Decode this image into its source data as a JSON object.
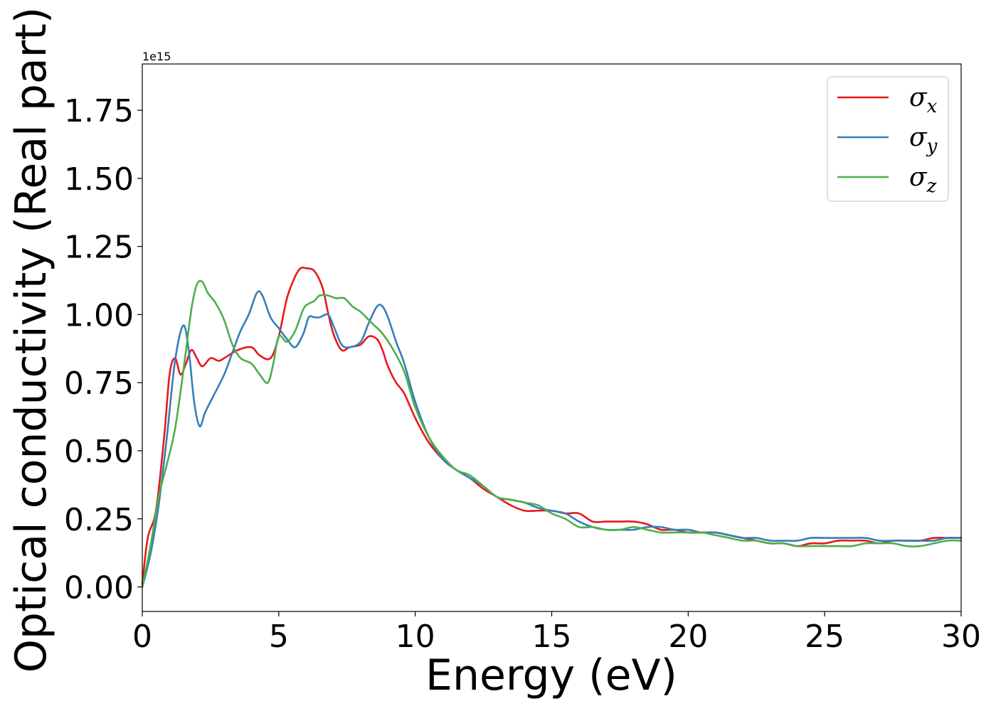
{
  "chart_data": {
    "type": "line",
    "title": "",
    "xlabel": "Energy (eV)",
    "ylabel": "Optical conductivity (Real part)",
    "y_offset_label": "1e15",
    "xlim": [
      0,
      30
    ],
    "ylim": [
      -0.09,
      1.92
    ],
    "xticks": [
      0,
      5,
      10,
      15,
      20,
      25,
      30
    ],
    "xtick_labels": [
      "0",
      "5",
      "10",
      "15",
      "20",
      "25",
      "30"
    ],
    "yticks": [
      0.0,
      0.25,
      0.5,
      0.75,
      1.0,
      1.25,
      1.5,
      1.75
    ],
    "ytick_labels": [
      "0.00",
      "0.25",
      "0.50",
      "0.75",
      "1.00",
      "1.25",
      "1.50",
      "1.75"
    ],
    "grid": false,
    "legend_position": "top-right",
    "series": [
      {
        "name": "σ_x",
        "symbol": "σ",
        "subscript": "x",
        "color": "#e41a1c",
        "x": [
          0,
          0.2,
          0.5,
          0.8,
          1.0,
          1.2,
          1.4,
          1.6,
          1.8,
          2.0,
          2.2,
          2.5,
          2.8,
          3.0,
          3.5,
          4.0,
          4.3,
          4.7,
          5.0,
          5.3,
          5.6,
          5.8,
          6.0,
          6.3,
          6.6,
          6.8,
          7.0,
          7.3,
          7.6,
          8.0,
          8.3,
          8.6,
          8.8,
          9.0,
          9.3,
          9.6,
          10.0,
          10.5,
          11.0,
          11.5,
          12.0,
          12.5,
          13.0,
          13.5,
          14.0,
          14.5,
          15.0,
          15.5,
          16.0,
          16.5,
          17.0,
          17.5,
          18.0,
          18.5,
          19.0,
          19.5,
          20.0,
          20.5,
          21.0,
          21.5,
          22.0,
          22.5,
          23.0,
          23.5,
          24.0,
          24.5,
          25.0,
          25.5,
          26.0,
          26.5,
          27.0,
          27.5,
          28.0,
          28.5,
          29.0,
          29.5,
          30.0
        ],
        "y": [
          0.01,
          0.18,
          0.28,
          0.55,
          0.78,
          0.84,
          0.78,
          0.82,
          0.87,
          0.84,
          0.81,
          0.84,
          0.83,
          0.84,
          0.87,
          0.88,
          0.85,
          0.84,
          0.92,
          1.06,
          1.14,
          1.17,
          1.17,
          1.16,
          1.1,
          1.01,
          0.93,
          0.87,
          0.88,
          0.89,
          0.92,
          0.91,
          0.87,
          0.81,
          0.75,
          0.71,
          0.62,
          0.53,
          0.47,
          0.43,
          0.4,
          0.36,
          0.33,
          0.3,
          0.28,
          0.28,
          0.28,
          0.27,
          0.27,
          0.24,
          0.24,
          0.24,
          0.24,
          0.23,
          0.21,
          0.21,
          0.2,
          0.2,
          0.2,
          0.19,
          0.18,
          0.17,
          0.16,
          0.16,
          0.15,
          0.16,
          0.16,
          0.17,
          0.17,
          0.17,
          0.16,
          0.17,
          0.17,
          0.17,
          0.18,
          0.18,
          0.18
        ]
      },
      {
        "name": "σ_y",
        "symbol": "σ",
        "subscript": "y",
        "color": "#377eb8",
        "x": [
          0,
          0.3,
          0.6,
          0.9,
          1.2,
          1.5,
          1.7,
          1.9,
          2.1,
          2.3,
          2.6,
          3.0,
          3.3,
          3.6,
          3.9,
          4.2,
          4.4,
          4.7,
          5.0,
          5.3,
          5.6,
          5.9,
          6.1,
          6.3,
          6.5,
          6.8,
          7.0,
          7.3,
          7.6,
          8.0,
          8.3,
          8.6,
          8.8,
          9.0,
          9.3,
          9.6,
          10.0,
          10.5,
          11.0,
          11.5,
          12.0,
          12.5,
          13.0,
          13.5,
          14.0,
          14.5,
          15.0,
          15.5,
          16.0,
          16.5,
          17.0,
          17.5,
          18.0,
          18.5,
          19.0,
          19.5,
          20.0,
          20.5,
          21.0,
          21.5,
          22.0,
          22.5,
          23.0,
          23.5,
          24.0,
          24.5,
          25.0,
          25.5,
          26.0,
          26.5,
          27.0,
          27.5,
          28.0,
          28.5,
          29.0,
          29.5,
          30.0
        ],
        "y": [
          0.0,
          0.12,
          0.3,
          0.55,
          0.83,
          0.96,
          0.87,
          0.68,
          0.59,
          0.64,
          0.7,
          0.78,
          0.86,
          0.94,
          1.0,
          1.08,
          1.07,
          0.99,
          0.95,
          0.91,
          0.88,
          0.93,
          0.99,
          0.99,
          0.99,
          1.0,
          0.96,
          0.89,
          0.88,
          0.9,
          0.97,
          1.03,
          1.03,
          0.99,
          0.9,
          0.82,
          0.68,
          0.55,
          0.47,
          0.43,
          0.4,
          0.37,
          0.33,
          0.32,
          0.31,
          0.29,
          0.28,
          0.27,
          0.24,
          0.22,
          0.21,
          0.21,
          0.21,
          0.22,
          0.22,
          0.21,
          0.21,
          0.2,
          0.2,
          0.19,
          0.18,
          0.18,
          0.17,
          0.17,
          0.17,
          0.18,
          0.18,
          0.18,
          0.18,
          0.18,
          0.17,
          0.17,
          0.17,
          0.17,
          0.17,
          0.18,
          0.18
        ]
      },
      {
        "name": "σ_z",
        "symbol": "σ",
        "subscript": "z",
        "color": "#4daf4a",
        "x": [
          0,
          0.3,
          0.6,
          0.9,
          1.2,
          1.5,
          1.8,
          2.0,
          2.2,
          2.4,
          2.7,
          3.0,
          3.3,
          3.6,
          4.0,
          4.3,
          4.6,
          4.8,
          5.0,
          5.3,
          5.6,
          5.9,
          6.1,
          6.3,
          6.5,
          6.8,
          7.1,
          7.4,
          7.7,
          8.0,
          8.4,
          8.8,
          9.2,
          9.6,
          10.0,
          10.5,
          11.0,
          11.5,
          12.0,
          12.5,
          13.0,
          13.5,
          14.0,
          14.5,
          15.0,
          15.5,
          16.0,
          16.5,
          17.0,
          17.5,
          18.0,
          18.5,
          19.0,
          19.5,
          20.0,
          20.5,
          21.0,
          21.5,
          22.0,
          22.5,
          23.0,
          23.5,
          24.0,
          24.5,
          25.0,
          25.5,
          26.0,
          26.5,
          27.0,
          27.5,
          28.0,
          28.5,
          29.0,
          29.5,
          30.0
        ],
        "y": [
          0.0,
          0.15,
          0.33,
          0.45,
          0.58,
          0.79,
          1.02,
          1.11,
          1.12,
          1.08,
          1.04,
          0.98,
          0.89,
          0.84,
          0.82,
          0.78,
          0.75,
          0.82,
          0.92,
          0.9,
          0.94,
          1.02,
          1.04,
          1.05,
          1.07,
          1.07,
          1.06,
          1.06,
          1.03,
          1.01,
          0.97,
          0.93,
          0.87,
          0.79,
          0.66,
          0.55,
          0.48,
          0.43,
          0.41,
          0.37,
          0.33,
          0.32,
          0.31,
          0.3,
          0.27,
          0.25,
          0.22,
          0.22,
          0.21,
          0.21,
          0.22,
          0.21,
          0.2,
          0.2,
          0.2,
          0.2,
          0.19,
          0.18,
          0.17,
          0.17,
          0.16,
          0.16,
          0.15,
          0.15,
          0.15,
          0.15,
          0.15,
          0.16,
          0.16,
          0.16,
          0.15,
          0.15,
          0.16,
          0.17,
          0.17
        ]
      }
    ]
  }
}
